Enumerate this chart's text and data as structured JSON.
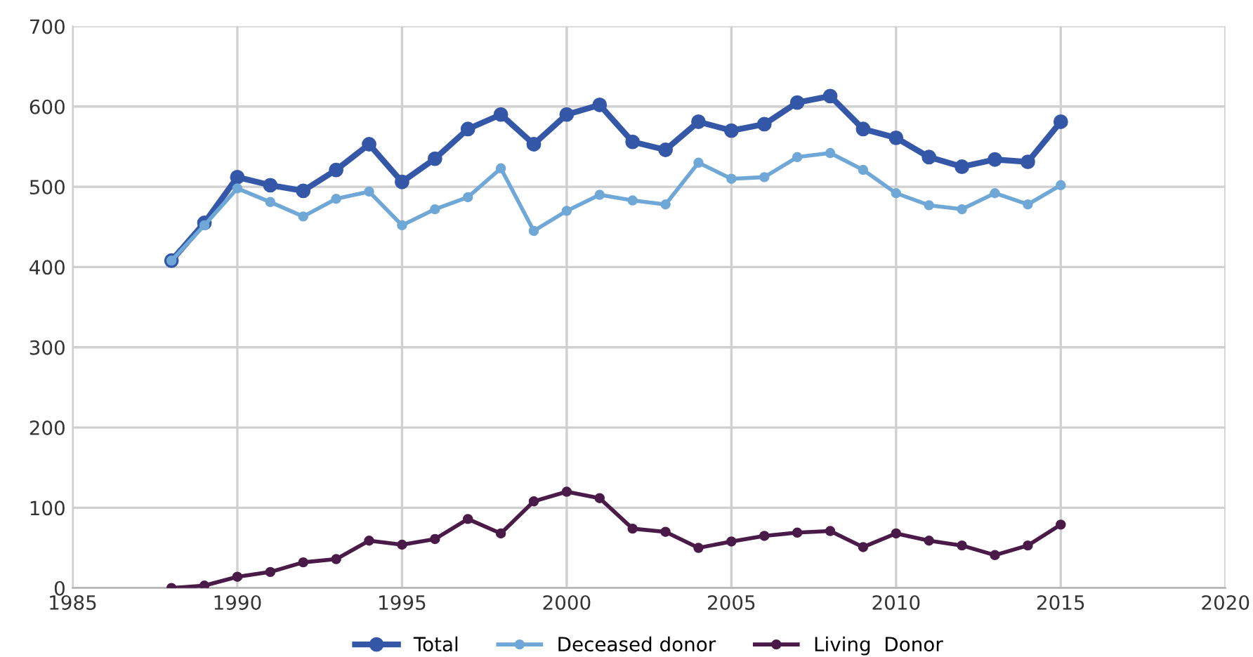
{
  "chart_data": {
    "type": "line",
    "x": [
      1988,
      1989,
      1990,
      1991,
      1992,
      1993,
      1994,
      1995,
      1996,
      1997,
      1998,
      1999,
      2000,
      2001,
      2002,
      2003,
      2004,
      2005,
      2006,
      2007,
      2008,
      2009,
      2010,
      2011,
      2012,
      2013,
      2014,
      2015
    ],
    "series": [
      {
        "name": "Total",
        "color": "#3457a8",
        "values": [
          408,
          455,
          512,
          502,
          495,
          521,
          553,
          506,
          535,
          572,
          590,
          553,
          590,
          602,
          556,
          546,
          581,
          570,
          578,
          605,
          613,
          572,
          561,
          537,
          525,
          534,
          531,
          581
        ]
      },
      {
        "name": "Deceased donor",
        "color": "#6fa8d6",
        "values": [
          408,
          452,
          498,
          481,
          463,
          485,
          494,
          452,
          472,
          487,
          523,
          445,
          470,
          490,
          483,
          478,
          530,
          510,
          512,
          537,
          542,
          521,
          492,
          477,
          472,
          492,
          478,
          502
        ]
      },
      {
        "name": "Living  Donor",
        "color": "#4a1a48",
        "values": [
          0,
          3,
          14,
          20,
          32,
          36,
          59,
          54,
          61,
          86,
          68,
          108,
          120,
          112,
          74,
          70,
          50,
          58,
          65,
          69,
          71,
          51,
          68,
          59,
          53,
          41,
          53,
          79
        ]
      }
    ],
    "xlim": [
      1985,
      2020
    ],
    "xticks": [
      1985,
      1990,
      1995,
      2000,
      2005,
      2010,
      2015,
      2020
    ],
    "ylim": [
      0,
      700
    ],
    "yticks": [
      0,
      100,
      200,
      300,
      400,
      500,
      600,
      700
    ],
    "grid": true,
    "legend": "bottom",
    "marker": "circle",
    "line_style": "solid"
  }
}
